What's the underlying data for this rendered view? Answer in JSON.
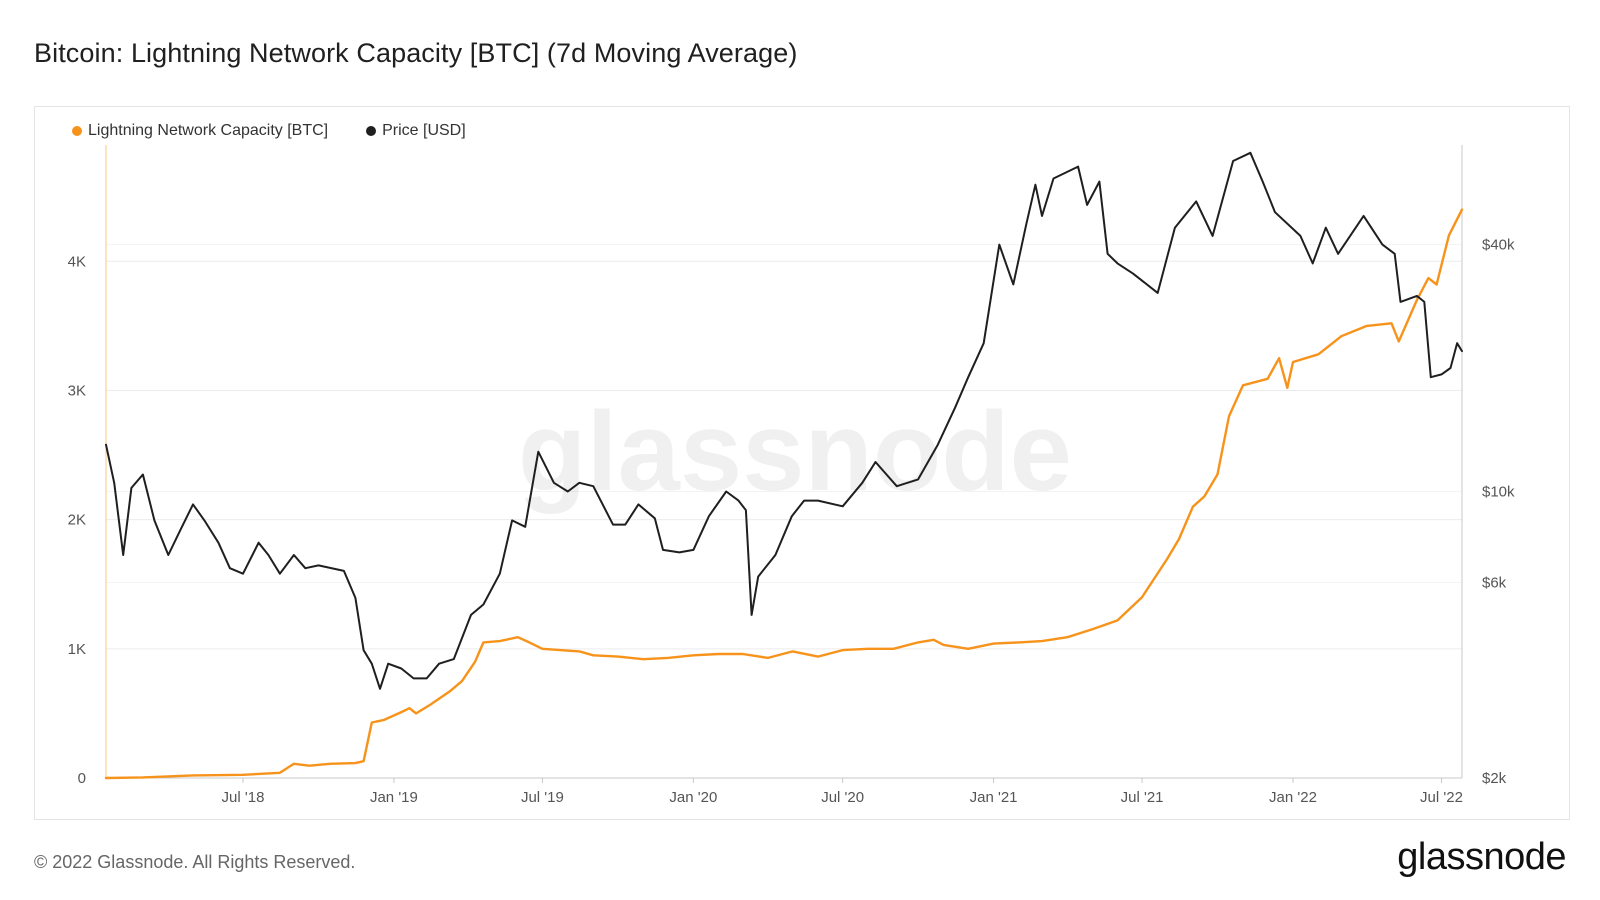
{
  "title": "Bitcoin: Lightning Network Capacity [BTC] (7d Moving Average)",
  "footer": "© 2022 Glassnode. All Rights Reserved.",
  "brand": "glassnode",
  "watermark": "glassnode",
  "colors": {
    "capacity": "#f7931a",
    "price": "#1f1f1f",
    "grid": "#ececec",
    "axis": "#c9c9c9"
  },
  "chart_data": {
    "type": "line",
    "legend": [
      {
        "name": "Lightning Network Capacity [BTC]",
        "color": "#f7931a"
      },
      {
        "name": "Price [USD]",
        "color": "#1f1f1f"
      }
    ],
    "x_ticks": [
      "Jul '18",
      "Jan '19",
      "Jul '19",
      "Jan '20",
      "Jul '20",
      "Jan '21",
      "Jul '21",
      "Jan '22",
      "Jul '22"
    ],
    "x_range": [
      "2018-01-15",
      "2022-07-26"
    ],
    "y_left": {
      "ticks": [
        "0",
        "1K",
        "2K",
        "3K",
        "4K"
      ],
      "range": [
        0,
        4900
      ]
    },
    "y_right": {
      "scale": "log",
      "ticks": [
        "$2k",
        "$6k",
        "$10k",
        "$40k"
      ],
      "tick_values": [
        2000,
        6000,
        10000,
        40000
      ],
      "range": [
        2000,
        70000
      ]
    },
    "series": [
      {
        "name": "Lightning Network Capacity [BTC]",
        "axis": "left",
        "points": [
          [
            "2018-01-15",
            0
          ],
          [
            "2018-03-01",
            5
          ],
          [
            "2018-05-01",
            20
          ],
          [
            "2018-07-01",
            25
          ],
          [
            "2018-08-15",
            40
          ],
          [
            "2018-09-01",
            110
          ],
          [
            "2018-09-20",
            95
          ],
          [
            "2018-10-15",
            110
          ],
          [
            "2018-11-15",
            115
          ],
          [
            "2018-11-25",
            130
          ],
          [
            "2018-12-05",
            430
          ],
          [
            "2018-12-20",
            450
          ],
          [
            "2019-01-10",
            510
          ],
          [
            "2019-01-20",
            540
          ],
          [
            "2019-01-28",
            500
          ],
          [
            "2019-02-15",
            570
          ],
          [
            "2019-03-10",
            670
          ],
          [
            "2019-03-25",
            750
          ],
          [
            "2019-04-10",
            900
          ],
          [
            "2019-04-20",
            1050
          ],
          [
            "2019-05-10",
            1060
          ],
          [
            "2019-06-01",
            1090
          ],
          [
            "2019-06-15",
            1050
          ],
          [
            "2019-07-01",
            1000
          ],
          [
            "2019-08-15",
            980
          ],
          [
            "2019-09-01",
            950
          ],
          [
            "2019-10-01",
            940
          ],
          [
            "2019-11-01",
            920
          ],
          [
            "2019-12-01",
            930
          ],
          [
            "2020-01-01",
            950
          ],
          [
            "2020-02-01",
            960
          ],
          [
            "2020-03-01",
            960
          ],
          [
            "2020-04-01",
            930
          ],
          [
            "2020-05-01",
            980
          ],
          [
            "2020-06-01",
            940
          ],
          [
            "2020-07-01",
            990
          ],
          [
            "2020-08-01",
            1000
          ],
          [
            "2020-09-01",
            1000
          ],
          [
            "2020-10-01",
            1050
          ],
          [
            "2020-10-20",
            1070
          ],
          [
            "2020-11-01",
            1030
          ],
          [
            "2020-12-01",
            1000
          ],
          [
            "2021-01-01",
            1040
          ],
          [
            "2021-02-01",
            1050
          ],
          [
            "2021-03-01",
            1060
          ],
          [
            "2021-04-01",
            1090
          ],
          [
            "2021-05-01",
            1150
          ],
          [
            "2021-06-01",
            1220
          ],
          [
            "2021-07-01",
            1400
          ],
          [
            "2021-08-01",
            1700
          ],
          [
            "2021-08-15",
            1850
          ],
          [
            "2021-09-01",
            2100
          ],
          [
            "2021-09-15",
            2180
          ],
          [
            "2021-10-01",
            2350
          ],
          [
            "2021-10-15",
            2800
          ],
          [
            "2021-11-01",
            3040
          ],
          [
            "2021-12-01",
            3090
          ],
          [
            "2021-12-15",
            3250
          ],
          [
            "2021-12-25",
            3020
          ],
          [
            "2022-01-01",
            3220
          ],
          [
            "2022-02-01",
            3280
          ],
          [
            "2022-03-01",
            3420
          ],
          [
            "2022-04-01",
            3500
          ],
          [
            "2022-05-01",
            3520
          ],
          [
            "2022-05-10",
            3380
          ],
          [
            "2022-06-01",
            3700
          ],
          [
            "2022-06-15",
            3870
          ],
          [
            "2022-06-25",
            3820
          ],
          [
            "2022-07-10",
            4200
          ],
          [
            "2022-07-26",
            4400
          ]
        ]
      },
      {
        "name": "Price [USD]",
        "axis": "right",
        "points": [
          [
            "2018-01-15",
            13000
          ],
          [
            "2018-01-25",
            10500
          ],
          [
            "2018-02-05",
            7000
          ],
          [
            "2018-02-15",
            10200
          ],
          [
            "2018-03-01",
            11000
          ],
          [
            "2018-03-15",
            8500
          ],
          [
            "2018-04-01",
            7000
          ],
          [
            "2018-04-15",
            8000
          ],
          [
            "2018-05-01",
            9300
          ],
          [
            "2018-05-15",
            8500
          ],
          [
            "2018-06-01",
            7500
          ],
          [
            "2018-06-15",
            6500
          ],
          [
            "2018-07-01",
            6300
          ],
          [
            "2018-07-20",
            7500
          ],
          [
            "2018-08-01",
            7000
          ],
          [
            "2018-08-15",
            6300
          ],
          [
            "2018-09-01",
            7000
          ],
          [
            "2018-09-15",
            6500
          ],
          [
            "2018-10-01",
            6600
          ],
          [
            "2018-11-01",
            6400
          ],
          [
            "2018-11-15",
            5500
          ],
          [
            "2018-11-25",
            4100
          ],
          [
            "2018-12-05",
            3800
          ],
          [
            "2018-12-15",
            3300
          ],
          [
            "2018-12-25",
            3800
          ],
          [
            "2019-01-10",
            3700
          ],
          [
            "2019-01-25",
            3500
          ],
          [
            "2019-02-10",
            3500
          ],
          [
            "2019-02-25",
            3800
          ],
          [
            "2019-03-15",
            3900
          ],
          [
            "2019-04-05",
            5000
          ],
          [
            "2019-04-20",
            5300
          ],
          [
            "2019-05-10",
            6300
          ],
          [
            "2019-05-25",
            8500
          ],
          [
            "2019-06-10",
            8200
          ],
          [
            "2019-06-26",
            12500
          ],
          [
            "2019-07-15",
            10500
          ],
          [
            "2019-08-01",
            10000
          ],
          [
            "2019-08-15",
            10500
          ],
          [
            "2019-09-01",
            10300
          ],
          [
            "2019-09-25",
            8300
          ],
          [
            "2019-10-10",
            8300
          ],
          [
            "2019-10-26",
            9300
          ],
          [
            "2019-11-15",
            8600
          ],
          [
            "2019-11-25",
            7200
          ],
          [
            "2019-12-15",
            7100
          ],
          [
            "2020-01-01",
            7200
          ],
          [
            "2020-01-20",
            8700
          ],
          [
            "2020-02-10",
            10000
          ],
          [
            "2020-02-25",
            9500
          ],
          [
            "2020-03-05",
            9000
          ],
          [
            "2020-03-12",
            5000
          ],
          [
            "2020-03-20",
            6200
          ],
          [
            "2020-04-10",
            7000
          ],
          [
            "2020-04-30",
            8700
          ],
          [
            "2020-05-15",
            9500
          ],
          [
            "2020-06-01",
            9500
          ],
          [
            "2020-07-01",
            9200
          ],
          [
            "2020-07-25",
            10500
          ],
          [
            "2020-08-10",
            11800
          ],
          [
            "2020-09-05",
            10300
          ],
          [
            "2020-10-01",
            10700
          ],
          [
            "2020-10-25",
            13000
          ],
          [
            "2020-11-15",
            16000
          ],
          [
            "2020-12-01",
            19000
          ],
          [
            "2020-12-20",
            23000
          ],
          [
            "2021-01-08",
            40000
          ],
          [
            "2021-01-25",
            32000
          ],
          [
            "2021-02-10",
            45000
          ],
          [
            "2021-02-21",
            56000
          ],
          [
            "2021-03-01",
            47000
          ],
          [
            "2021-03-15",
            58000
          ],
          [
            "2021-04-14",
            62000
          ],
          [
            "2021-04-25",
            50000
          ],
          [
            "2021-05-10",
            57000
          ],
          [
            "2021-05-20",
            38000
          ],
          [
            "2021-06-01",
            36000
          ],
          [
            "2021-06-20",
            34000
          ],
          [
            "2021-07-20",
            30500
          ],
          [
            "2021-08-10",
            44000
          ],
          [
            "2021-09-05",
            51000
          ],
          [
            "2021-09-25",
            42000
          ],
          [
            "2021-10-20",
            64000
          ],
          [
            "2021-11-10",
            67000
          ],
          [
            "2021-11-25",
            57000
          ],
          [
            "2021-12-10",
            48000
          ],
          [
            "2022-01-10",
            42000
          ],
          [
            "2022-01-25",
            36000
          ],
          [
            "2022-02-10",
            44000
          ],
          [
            "2022-02-25",
            38000
          ],
          [
            "2022-03-28",
            47000
          ],
          [
            "2022-04-20",
            40000
          ],
          [
            "2022-05-05",
            38000
          ],
          [
            "2022-05-12",
            29000
          ],
          [
            "2022-06-01",
            30000
          ],
          [
            "2022-06-10",
            29000
          ],
          [
            "2022-06-18",
            19000
          ],
          [
            "2022-07-01",
            19300
          ],
          [
            "2022-07-12",
            20000
          ],
          [
            "2022-07-20",
            23000
          ],
          [
            "2022-07-26",
            22000
          ]
        ]
      }
    ]
  }
}
